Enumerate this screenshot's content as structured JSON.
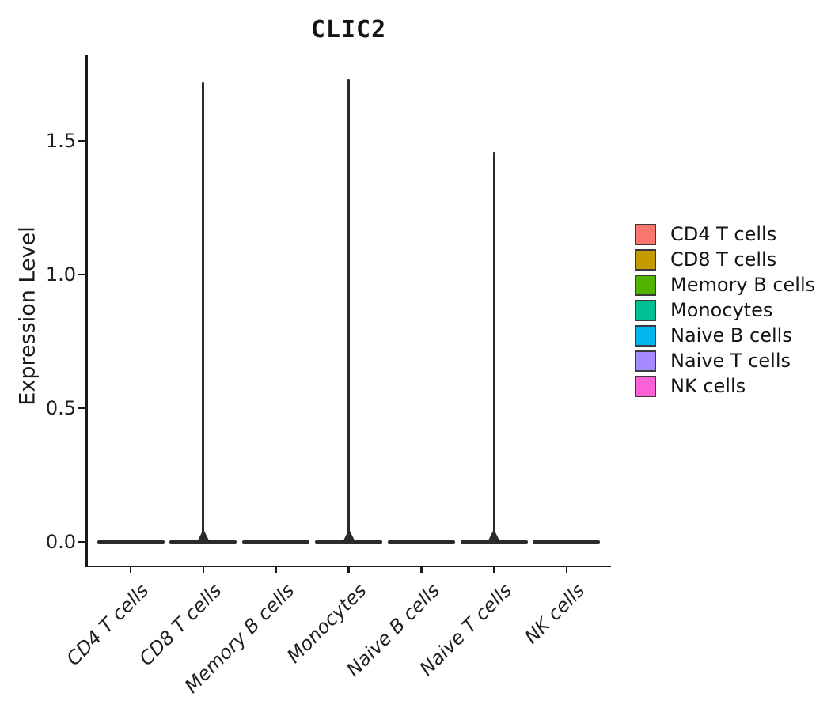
{
  "chart_data": {
    "type": "violin",
    "title": "CLIC2",
    "ylabel": "Expression Level",
    "categories": [
      "CD4 T cells",
      "CD8 T cells",
      "Memory B cells",
      "Monocytes",
      "Naive B cells",
      "Naive T cells",
      "NK cells"
    ],
    "yticks": [
      {
        "label": "0.0",
        "value": 0.0
      },
      {
        "label": "0.5",
        "value": 0.5
      },
      {
        "label": "1.0",
        "value": 1.0
      },
      {
        "label": "1.5",
        "value": 1.5
      }
    ],
    "ylim": [
      0.0,
      1.82
    ],
    "grid": false,
    "legend_position": "right",
    "series": [
      {
        "name": "CD4 T cells",
        "color": "#F8766D",
        "bulk_at": 0.0,
        "max_expression": 0.0
      },
      {
        "name": "CD8 T cells",
        "color": "#C49A00",
        "bulk_at": 0.0,
        "max_expression": 1.72
      },
      {
        "name": "Memory B cells",
        "color": "#53B400",
        "bulk_at": 0.0,
        "max_expression": 0.0
      },
      {
        "name": "Monocytes",
        "color": "#00C094",
        "bulk_at": 0.0,
        "max_expression": 1.73
      },
      {
        "name": "Naive B cells",
        "color": "#00B6EB",
        "bulk_at": 0.0,
        "max_expression": 0.0
      },
      {
        "name": "Naive T cells",
        "color": "#A58AFF",
        "bulk_at": 0.0,
        "max_expression": 1.46
      },
      {
        "name": "NK cells",
        "color": "#FB61D7",
        "bulk_at": 0.0,
        "max_expression": 0.0
      }
    ],
    "annotation": "All violins are collapsed flat at expression 0; thin outlier spikes rise from CD8 T cells, Monocytes and Naive T cells."
  },
  "legend": {
    "entries": [
      {
        "label": "CD4 T cells",
        "color": "#F8766D"
      },
      {
        "label": "CD8 T cells",
        "color": "#C49A00"
      },
      {
        "label": "Memory B cells",
        "color": "#53B400"
      },
      {
        "label": "Monocytes",
        "color": "#00C094"
      },
      {
        "label": "Naive B cells",
        "color": "#00B6EB"
      },
      {
        "label": "Naive T cells",
        "color": "#A58AFF"
      },
      {
        "label": "NK cells",
        "color": "#FB61D7"
      }
    ]
  },
  "colors": {
    "axis": "#1a1a1a",
    "violin_outline": "#2b2b2b",
    "text": "#1f1f1f",
    "background": "#ffffff"
  }
}
